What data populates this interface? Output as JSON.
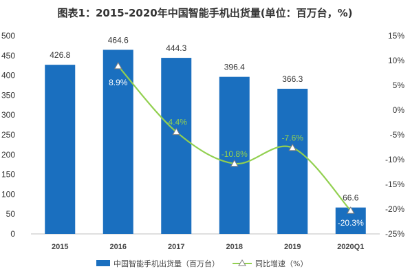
{
  "chart_data": {
    "type": "bar",
    "title": "图表1：2015-2020年中国智能手机出货量(单位：百万台，%)",
    "categories": [
      "2015",
      "2016",
      "2017",
      "2018",
      "2019",
      "2020Q1"
    ],
    "series": [
      {
        "name": "中国智能手机出货量（百万台）",
        "type": "bar",
        "axis": "left",
        "values": [
          426.8,
          464.6,
          444.3,
          396.4,
          366.3,
          66.6
        ],
        "labels": [
          "426.8",
          "464.6",
          "444.3",
          "396.4",
          "366.3",
          "66.6"
        ],
        "color": "#1a6fbf"
      },
      {
        "name": "同比增速（%）",
        "type": "line",
        "axis": "right",
        "values": [
          null,
          8.9,
          -4.4,
          -10.8,
          -7.6,
          -20.3
        ],
        "labels": [
          "",
          "8.9%",
          "-4.4%",
          "-10.8%",
          "-7.6%",
          "-20.3%"
        ],
        "color": "#92d050"
      }
    ],
    "left_axis": {
      "ylim": [
        0,
        500
      ],
      "ticks": [
        0,
        50,
        100,
        150,
        200,
        250,
        300,
        350,
        400,
        450,
        500
      ],
      "tick_labels": [
        "0",
        "50",
        "100",
        "150",
        "200",
        "250",
        "300",
        "350",
        "400",
        "450",
        "500"
      ]
    },
    "right_axis": {
      "ylim": [
        -25,
        15
      ],
      "ticks": [
        -25,
        -20,
        -15,
        -10,
        -5,
        0,
        5,
        10,
        15
      ],
      "tick_labels": [
        "-25%",
        "-20%",
        "-15%",
        "-10%",
        "-5%",
        "0%",
        "5%",
        "10%",
        "15%"
      ]
    },
    "grid": false,
    "legend": "bottom"
  }
}
